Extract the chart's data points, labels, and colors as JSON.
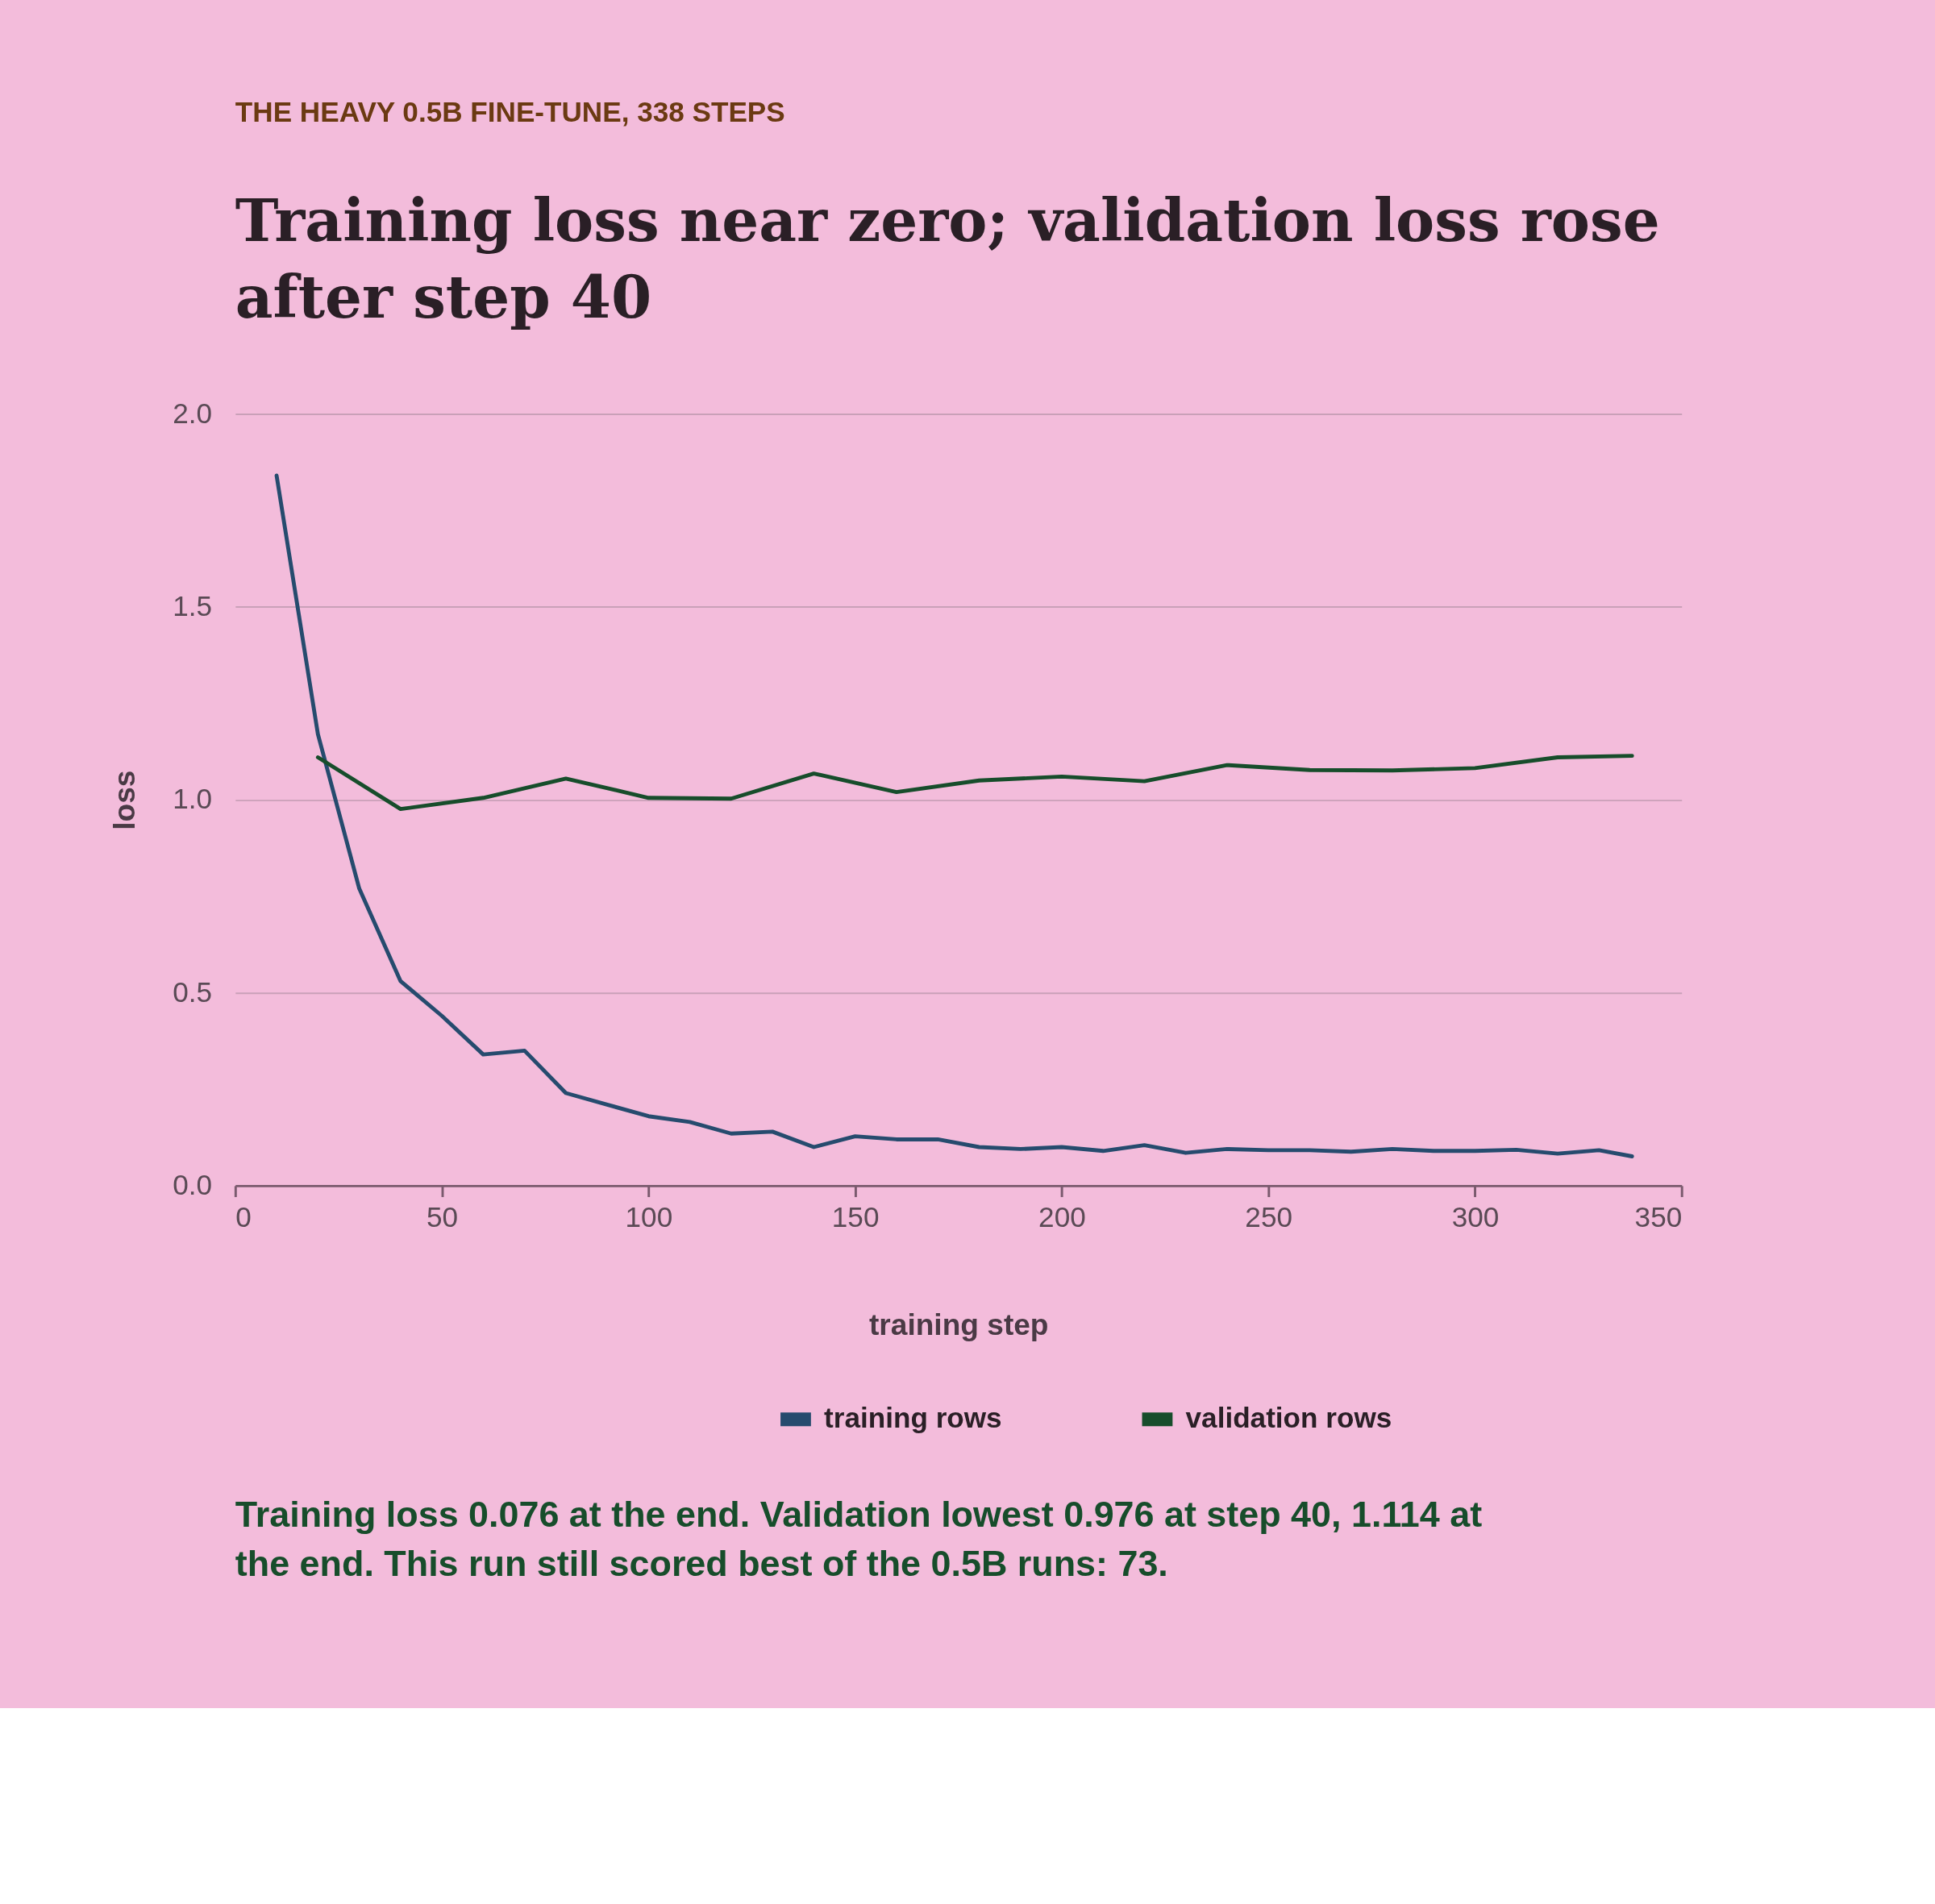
{
  "chart_data": {
    "type": "line",
    "subtitle": "THE HEAVY 0.5B FINE-TUNE, 338 STEPS",
    "title": "Training loss near zero; validation loss rose after step 40",
    "xlabel": "training step",
    "ylabel": "loss",
    "xlim": [
      0,
      350
    ],
    "xticks": [
      0,
      50,
      100,
      150,
      200,
      250,
      300,
      350
    ],
    "ylim": [
      0,
      2
    ],
    "yticks": [
      {
        "value": 0,
        "label": "0.0"
      },
      {
        "value": 0.5,
        "label": "0.5"
      },
      {
        "value": 1,
        "label": "1.0"
      },
      {
        "value": 1.5,
        "label": "1.5"
      },
      {
        "value": 2,
        "label": "2.0"
      }
    ],
    "grid": "y",
    "legend": "bottom",
    "line_style": "solid",
    "marker": "none",
    "series": [
      {
        "name": "training rows",
        "color": "#264b6e",
        "x": [
          10,
          20,
          30,
          40,
          50,
          60,
          70,
          80,
          90,
          100,
          110,
          120,
          130,
          140,
          150,
          160,
          170,
          180,
          190,
          200,
          210,
          220,
          230,
          240,
          250,
          260,
          270,
          280,
          290,
          300,
          310,
          320,
          330,
          338
        ],
        "values": [
          1.84,
          1.17,
          0.77,
          0.53,
          0.44,
          0.34,
          0.35,
          0.24,
          0.21,
          0.18,
          0.165,
          0.135,
          0.14,
          0.1,
          0.128,
          0.12,
          0.12,
          0.1,
          0.095,
          0.1,
          0.09,
          0.105,
          0.085,
          0.095,
          0.092,
          0.092,
          0.088,
          0.095,
          0.09,
          0.09,
          0.093,
          0.083,
          0.092,
          0.076
        ]
      },
      {
        "name": "validation rows",
        "color": "#174d2b",
        "x": [
          20,
          40,
          60,
          80,
          100,
          120,
          140,
          160,
          180,
          200,
          220,
          240,
          260,
          280,
          300,
          320,
          338
        ],
        "values": [
          1.11,
          0.976,
          1.005,
          1.055,
          1.005,
          1.003,
          1.068,
          1.02,
          1.05,
          1.06,
          1.048,
          1.09,
          1.077,
          1.076,
          1.082,
          1.11,
          1.114
        ]
      }
    ],
    "annotations": [
      "Training loss 0.076 at the end. Validation lowest 0.976 at step 40, 1.114 at the end. This run still scored best of the 0.5B runs: 73."
    ]
  }
}
